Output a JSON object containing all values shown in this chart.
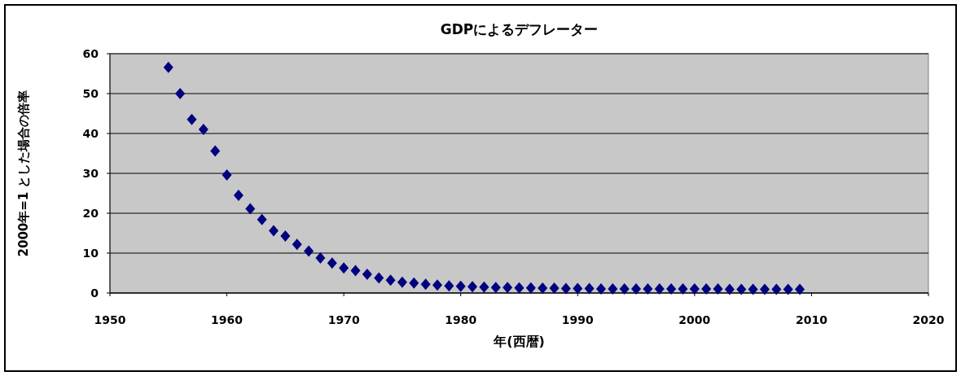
{
  "chart_data": {
    "type": "scatter",
    "title": "GDPによるデフレーター",
    "xlabel": "年(西暦)",
    "ylabel": "2000年=1 とした場合の倍率",
    "x": [
      1955,
      1956,
      1957,
      1958,
      1959,
      1960,
      1961,
      1962,
      1963,
      1964,
      1965,
      1966,
      1967,
      1968,
      1969,
      1970,
      1971,
      1972,
      1973,
      1974,
      1975,
      1976,
      1977,
      1978,
      1979,
      1980,
      1981,
      1982,
      1983,
      1984,
      1985,
      1986,
      1987,
      1988,
      1989,
      1990,
      1991,
      1992,
      1993,
      1994,
      1995,
      1996,
      1997,
      1998,
      1999,
      2000,
      2001,
      2002,
      2003,
      2004,
      2005,
      2006,
      2007,
      2008,
      2009
    ],
    "series": [
      {
        "color": "#000080",
        "values": [
          56.6,
          50.0,
          43.5,
          41.0,
          35.6,
          29.6,
          24.5,
          21.1,
          18.4,
          15.6,
          14.3,
          12.2,
          10.5,
          8.8,
          7.5,
          6.3,
          5.6,
          4.7,
          3.8,
          3.2,
          2.7,
          2.5,
          2.2,
          2.0,
          1.8,
          1.7,
          1.6,
          1.5,
          1.4,
          1.4,
          1.3,
          1.3,
          1.2,
          1.2,
          1.1,
          1.1,
          1.1,
          1.0,
          1.0,
          1.0,
          1.0,
          1.0,
          1.0,
          1.0,
          1.0,
          1.0,
          1.0,
          1.0,
          0.9,
          0.9,
          0.9,
          0.9,
          0.9,
          0.9,
          0.9
        ]
      }
    ],
    "xlim": [
      1950,
      2020
    ],
    "ylim": [
      0,
      60
    ],
    "xticks": [
      1950,
      1960,
      1970,
      1980,
      1990,
      2000,
      2010,
      2020
    ],
    "yticks": [
      0,
      10,
      20,
      30,
      40,
      50,
      60
    ],
    "grid": "y",
    "marker": "diamond"
  }
}
